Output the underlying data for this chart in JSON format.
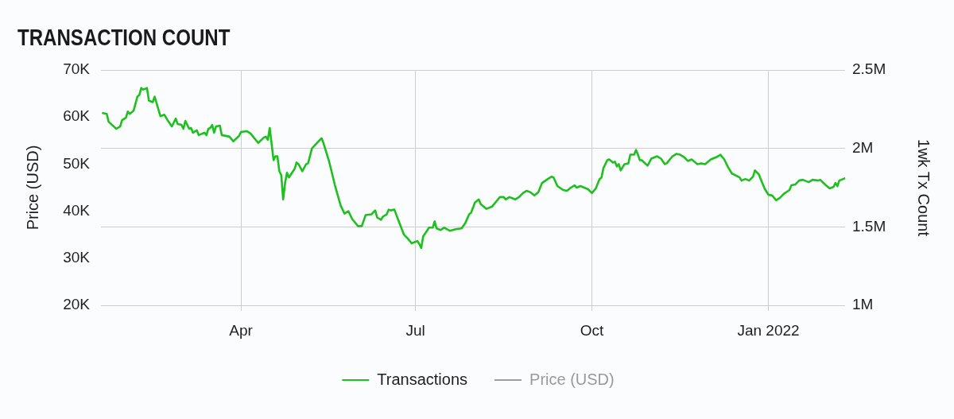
{
  "chart_data": {
    "type": "line",
    "title": "TRANSACTION COUNT",
    "ylabel": "Price (USD)",
    "y2label": "1wk Tx Count",
    "x": [
      "2021-01-19",
      "2021-01-21",
      "2021-01-22",
      "2021-01-26",
      "2021-01-28",
      "2021-01-29",
      "2021-01-31",
      "2021-02-01",
      "2021-02-02",
      "2021-02-04",
      "2021-02-06",
      "2021-02-07",
      "2021-02-08",
      "2021-02-09",
      "2021-02-11",
      "2021-02-12",
      "2021-02-14",
      "2021-02-15",
      "2021-02-18",
      "2021-02-20",
      "2021-02-22",
      "2021-02-24",
      "2021-02-26",
      "2021-02-27",
      "2021-03-01",
      "2021-03-02",
      "2021-03-03",
      "2021-03-05",
      "2021-03-06",
      "2021-03-07",
      "2021-03-09",
      "2021-03-10",
      "2021-03-13",
      "2021-03-14",
      "2021-03-15",
      "2021-03-16",
      "2021-03-17",
      "2021-03-18",
      "2021-03-19",
      "2021-03-21",
      "2021-03-22",
      "2021-03-24",
      "2021-03-26",
      "2021-03-28",
      "2021-03-31",
      "2021-04-01",
      "2021-04-04",
      "2021-04-06",
      "2021-04-08",
      "2021-04-10",
      "2021-04-13",
      "2021-04-14",
      "2021-04-15",
      "2021-04-16",
      "2021-04-18",
      "2021-04-19",
      "2021-04-20",
      "2021-04-21",
      "2021-04-22",
      "2021-04-23",
      "2021-04-24",
      "2021-04-25",
      "2021-04-26",
      "2021-04-29",
      "2021-04-30",
      "2021-05-01",
      "2021-05-03",
      "2021-05-05",
      "2021-05-06",
      "2021-05-08",
      "2021-05-13",
      "2021-05-14",
      "2021-05-17",
      "2021-05-20",
      "2021-05-23",
      "2021-05-25",
      "2021-05-27",
      "2021-05-29",
      "2021-06-01",
      "2021-06-03",
      "2021-06-05",
      "2021-06-08",
      "2021-06-10",
      "2021-06-11",
      "2021-06-13",
      "2021-06-14",
      "2021-06-16",
      "2021-06-17",
      "2021-06-18",
      "2021-06-20",
      "2021-06-22",
      "2021-06-25",
      "2021-06-27",
      "2021-06-29",
      "2021-07-02",
      "2021-07-03",
      "2021-07-04",
      "2021-07-05",
      "2021-07-07",
      "2021-07-08",
      "2021-07-10",
      "2021-07-11",
      "2021-07-12",
      "2021-07-14",
      "2021-07-16",
      "2021-07-19",
      "2021-07-22",
      "2021-07-25",
      "2021-07-27",
      "2021-07-29",
      "2021-07-30",
      "2021-08-01",
      "2021-08-03",
      "2021-08-04",
      "2021-08-07",
      "2021-08-10",
      "2021-08-12",
      "2021-08-14",
      "2021-08-16",
      "2021-08-17",
      "2021-08-19",
      "2021-08-22",
      "2021-08-24",
      "2021-08-26",
      "2021-08-28",
      "2021-08-30",
      "2021-09-01",
      "2021-09-03",
      "2021-09-05",
      "2021-09-08",
      "2021-09-10",
      "2021-09-11",
      "2021-09-13",
      "2021-09-16",
      "2021-09-18",
      "2021-09-20",
      "2021-09-22",
      "2021-09-23",
      "2021-09-25",
      "2021-09-28",
      "2021-09-29",
      "2021-10-01",
      "2021-10-03",
      "2021-10-05",
      "2021-10-06",
      "2021-10-07",
      "2021-10-09",
      "2021-10-10",
      "2021-10-12",
      "2021-10-13",
      "2021-10-14",
      "2021-10-15",
      "2021-10-16",
      "2021-10-18",
      "2021-10-20",
      "2021-10-21",
      "2021-10-23",
      "2021-10-24",
      "2021-10-25",
      "2021-10-26",
      "2021-10-27",
      "2021-10-30",
      "2021-11-01",
      "2021-11-04",
      "2021-11-06",
      "2021-11-08",
      "2021-11-09",
      "2021-11-12",
      "2021-11-14",
      "2021-11-16",
      "2021-11-18",
      "2021-11-20",
      "2021-11-22",
      "2021-11-25",
      "2021-11-27",
      "2021-11-29",
      "2021-12-02",
      "2021-12-04",
      "2021-12-05",
      "2021-12-07",
      "2021-12-09",
      "2021-12-11",
      "2021-12-13",
      "2021-12-17",
      "2021-12-18",
      "2021-12-20",
      "2021-12-22",
      "2021-12-24",
      "2021-12-25",
      "2021-12-27",
      "2021-12-28",
      "2021-12-30",
      "2022-01-01",
      "2022-01-03",
      "2022-01-05",
      "2022-01-07",
      "2022-01-09",
      "2022-01-12",
      "2022-01-13",
      "2022-01-15",
      "2022-01-17",
      "2022-01-19",
      "2022-01-21",
      "2022-01-22",
      "2022-01-24",
      "2022-01-27",
      "2022-01-28",
      "2022-01-31",
      "2022-02-02",
      "2022-02-04",
      "2022-02-05",
      "2022-02-06",
      "2022-02-07",
      "2022-02-08",
      "2022-02-10"
    ],
    "series": [
      {
        "name": "Transactions",
        "color": "#1ec01e",
        "axis": "y2",
        "values": [
          2225000,
          2220000,
          2170000,
          2125000,
          2140000,
          2180000,
          2195000,
          2235000,
          2220000,
          2240000,
          2330000,
          2340000,
          2385000,
          2375000,
          2385000,
          2305000,
          2295000,
          2330000,
          2205000,
          2215000,
          2175000,
          2140000,
          2190000,
          2155000,
          2150000,
          2125000,
          2175000,
          2125000,
          2130000,
          2100000,
          2115000,
          2085000,
          2100000,
          2085000,
          2125000,
          2130000,
          2150000,
          2100000,
          2140000,
          2145000,
          2085000,
          2080000,
          2075000,
          2045000,
          2080000,
          2105000,
          2110000,
          2095000,
          2065000,
          2035000,
          2070000,
          2075000,
          2055000,
          2130000,
          1925000,
          1950000,
          1950000,
          1855000,
          1830000,
          1675000,
          1780000,
          1845000,
          1815000,
          1870000,
          1910000,
          1900000,
          1855000,
          1900000,
          1905000,
          2000000,
          2065000,
          2035000,
          1915000,
          1765000,
          1635000,
          1585000,
          1600000,
          1550000,
          1505000,
          1505000,
          1575000,
          1580000,
          1605000,
          1560000,
          1545000,
          1565000,
          1580000,
          1610000,
          1605000,
          1610000,
          1545000,
          1450000,
          1425000,
          1395000,
          1410000,
          1390000,
          1365000,
          1440000,
          1475000,
          1495000,
          1495000,
          1535000,
          1490000,
          1480000,
          1495000,
          1475000,
          1485000,
          1490000,
          1525000,
          1580000,
          1590000,
          1655000,
          1675000,
          1645000,
          1615000,
          1630000,
          1660000,
          1690000,
          1690000,
          1675000,
          1690000,
          1675000,
          1690000,
          1715000,
          1730000,
          1720000,
          1700000,
          1720000,
          1780000,
          1805000,
          1820000,
          1815000,
          1760000,
          1735000,
          1730000,
          1750000,
          1765000,
          1750000,
          1760000,
          1745000,
          1740000,
          1715000,
          1745000,
          1805000,
          1815000,
          1875000,
          1925000,
          1930000,
          1910000,
          1915000,
          1885000,
          1900000,
          1860000,
          1900000,
          1905000,
          1960000,
          1960000,
          1990000,
          1960000,
          1925000,
          1925000,
          1890000,
          1935000,
          1950000,
          1935000,
          1900000,
          1905000,
          1950000,
          1965000,
          1960000,
          1945000,
          1920000,
          1930000,
          1900000,
          1905000,
          1900000,
          1930000,
          1940000,
          1945000,
          1960000,
          1930000,
          1880000,
          1840000,
          1815000,
          1795000,
          1805000,
          1795000,
          1820000,
          1860000,
          1835000,
          1805000,
          1745000,
          1705000,
          1700000,
          1670000,
          1685000,
          1710000,
          1735000,
          1765000,
          1770000,
          1795000,
          1800000,
          1790000,
          1785000,
          1800000,
          1795000,
          1800000,
          1765000,
          1745000,
          1755000,
          1780000,
          1760000,
          1795000,
          1800000,
          1810000
        ]
      },
      {
        "name": "Price (USD)",
        "color": "#9e9e9e",
        "values": [
          null,
          null,
          null,
          null,
          null,
          null,
          null,
          null,
          null,
          null,
          null,
          null,
          null,
          null,
          null,
          null,
          null,
          null,
          null,
          null,
          null,
          null,
          null,
          null,
          null,
          null,
          null,
          null,
          null,
          null,
          null,
          null,
          null,
          null,
          null,
          null,
          null,
          null,
          null,
          null,
          null,
          null,
          null,
          null,
          null,
          null,
          null,
          null,
          null,
          null,
          null,
          null,
          null,
          null,
          null,
          null,
          null,
          null,
          null,
          null,
          null,
          null,
          null,
          null,
          null,
          null,
          null,
          null,
          null,
          null,
          null,
          null,
          null,
          null,
          null,
          null,
          null,
          null,
          null,
          null,
          null,
          null,
          null,
          null,
          null,
          null,
          null,
          null,
          null,
          null,
          null,
          null,
          null,
          null,
          null,
          null,
          null,
          null,
          null,
          null,
          null,
          null,
          null,
          null,
          null,
          null,
          null,
          null,
          null,
          null,
          null,
          null,
          null,
          null,
          null,
          null,
          null,
          null,
          null,
          null,
          null,
          null,
          null,
          null,
          null,
          null,
          null,
          null,
          null,
          null,
          null,
          null,
          null,
          null,
          null,
          null,
          null,
          null,
          null,
          null,
          null,
          null,
          null,
          null,
          null,
          null,
          null,
          null,
          null,
          null,
          null,
          null,
          null,
          null,
          null,
          null,
          null,
          null,
          null,
          null,
          null,
          null,
          null,
          null,
          null,
          null,
          null,
          null,
          null,
          null,
          null,
          null,
          null,
          null,
          null,
          null,
          null,
          null,
          null,
          null,
          null,
          null,
          null,
          null,
          null,
          null,
          null,
          null,
          null,
          null,
          null,
          null,
          null,
          null,
          null,
          null,
          null,
          null,
          null,
          null,
          null,
          null,
          null,
          null,
          null,
          null,
          null,
          null,
          null,
          null,
          null,
          null,
          null,
          null,
          null
        ]
      }
    ],
    "xlim": [
      "2021-01-18",
      "2022-02-10"
    ],
    "xticks": [
      {
        "value": "2021-04-01",
        "label": "Apr"
      },
      {
        "value": "2021-07-01",
        "label": "Jul"
      },
      {
        "value": "2021-10-01",
        "label": "Oct"
      },
      {
        "value": "2022-01-01",
        "label": "Jan 2022"
      }
    ],
    "ylim": [
      20000,
      70000
    ],
    "yticks": [
      {
        "value": 20000,
        "label": "20K"
      },
      {
        "value": 30000,
        "label": "30K"
      },
      {
        "value": 40000,
        "label": "40K"
      },
      {
        "value": 50000,
        "label": "50K"
      },
      {
        "value": 60000,
        "label": "60K"
      },
      {
        "value": 70000,
        "label": "70K"
      }
    ],
    "y2lim": [
      1000000,
      2500000
    ],
    "y2ticks": [
      {
        "value": 1000000,
        "label": "1M"
      },
      {
        "value": 1500000,
        "label": "1.5M"
      },
      {
        "value": 2000000,
        "label": "2M"
      },
      {
        "value": 2500000,
        "label": "2.5M"
      }
    ],
    "grid": true,
    "legend": "bottom",
    "marker": "none"
  }
}
